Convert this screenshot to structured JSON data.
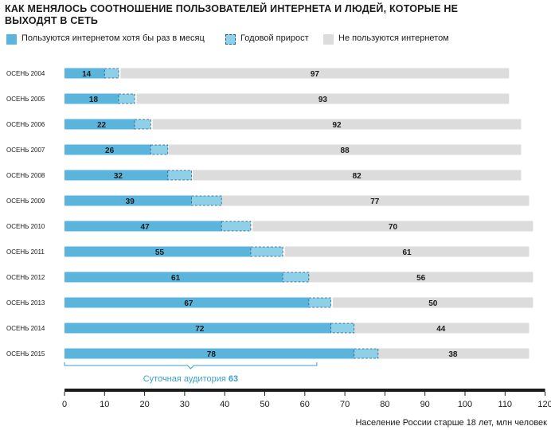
{
  "title": "КАК МЕНЯЛОСЬ СООТНОШЕНИЕ ПОЛЬЗОВАТЕЛЕЙ ИНТЕРНЕТА И ЛЮДЕЙ, КОТОРЫЕ НЕ ВЫХОДЯТ В СЕТЬ",
  "legend": [
    {
      "label": "Пользуются интернетом хотя бы раз в месяц",
      "style": "solid-blue"
    },
    {
      "label": "Годовой прирост",
      "style": "dashed-blue"
    },
    {
      "label": "Не пользуются интернетом",
      "style": "solid-gray"
    }
  ],
  "colors": {
    "users": "#5ab4dc",
    "growth": "#8ecfe9",
    "growth_border": "#1f5f80",
    "nonusers": "#dcdcdc",
    "accent": "#3aa0d0",
    "axis": "#1a1a1a"
  },
  "annotation": {
    "label": "Суточная аудитория",
    "value": "63",
    "x_from": 0,
    "x_to": 63
  },
  "chart_data": {
    "type": "bar",
    "orientation": "horizontal",
    "stacked": true,
    "categories": [
      "ОСЕНЬ 2004",
      "ОСЕНЬ 2005",
      "ОСЕНЬ 2006",
      "ОСЕНЬ 2007",
      "ОСЕНЬ 2008",
      "ОСЕНЬ 2009",
      "ОСЕНЬ 2010",
      "ОСЕНЬ 2011",
      "ОСЕНЬ 2012",
      "ОСЕНЬ 2013",
      "ОСЕНЬ 2014",
      "ОСЕНЬ 2015"
    ],
    "series": [
      {
        "name": "Пользуются интернетом хотя бы раз в месяц",
        "values": [
          14,
          18,
          22,
          26,
          32,
          39,
          47,
          55,
          61,
          67,
          72,
          78
        ]
      },
      {
        "name": "Не пользуются интернетом",
        "values": [
          97,
          93,
          92,
          88,
          82,
          77,
          70,
          61,
          56,
          50,
          44,
          38
        ]
      }
    ],
    "growth_segments": [
      {
        "from": 10,
        "to": 13.5
      },
      {
        "from": 13.5,
        "to": 17.5
      },
      {
        "from": 17.5,
        "to": 21.5
      },
      {
        "from": 21.5,
        "to": 25.8
      },
      {
        "from": 25.8,
        "to": 31.7
      },
      {
        "from": 31.7,
        "to": 39.2
      },
      {
        "from": 39.2,
        "to": 46.5
      },
      {
        "from": 46.5,
        "to": 54.5
      },
      {
        "from": 54.5,
        "to": 61
      },
      {
        "from": 61,
        "to": 66.5
      },
      {
        "from": 66.5,
        "to": 72.3
      },
      {
        "from": 72.3,
        "to": 78.3
      }
    ],
    "xlabel": "Население России старше 18 лет, млн человек",
    "xlim": [
      0,
      120
    ],
    "xticks": [
      0,
      10,
      20,
      30,
      40,
      50,
      60,
      70,
      80,
      90,
      100,
      110,
      120
    ],
    "grid": false
  }
}
